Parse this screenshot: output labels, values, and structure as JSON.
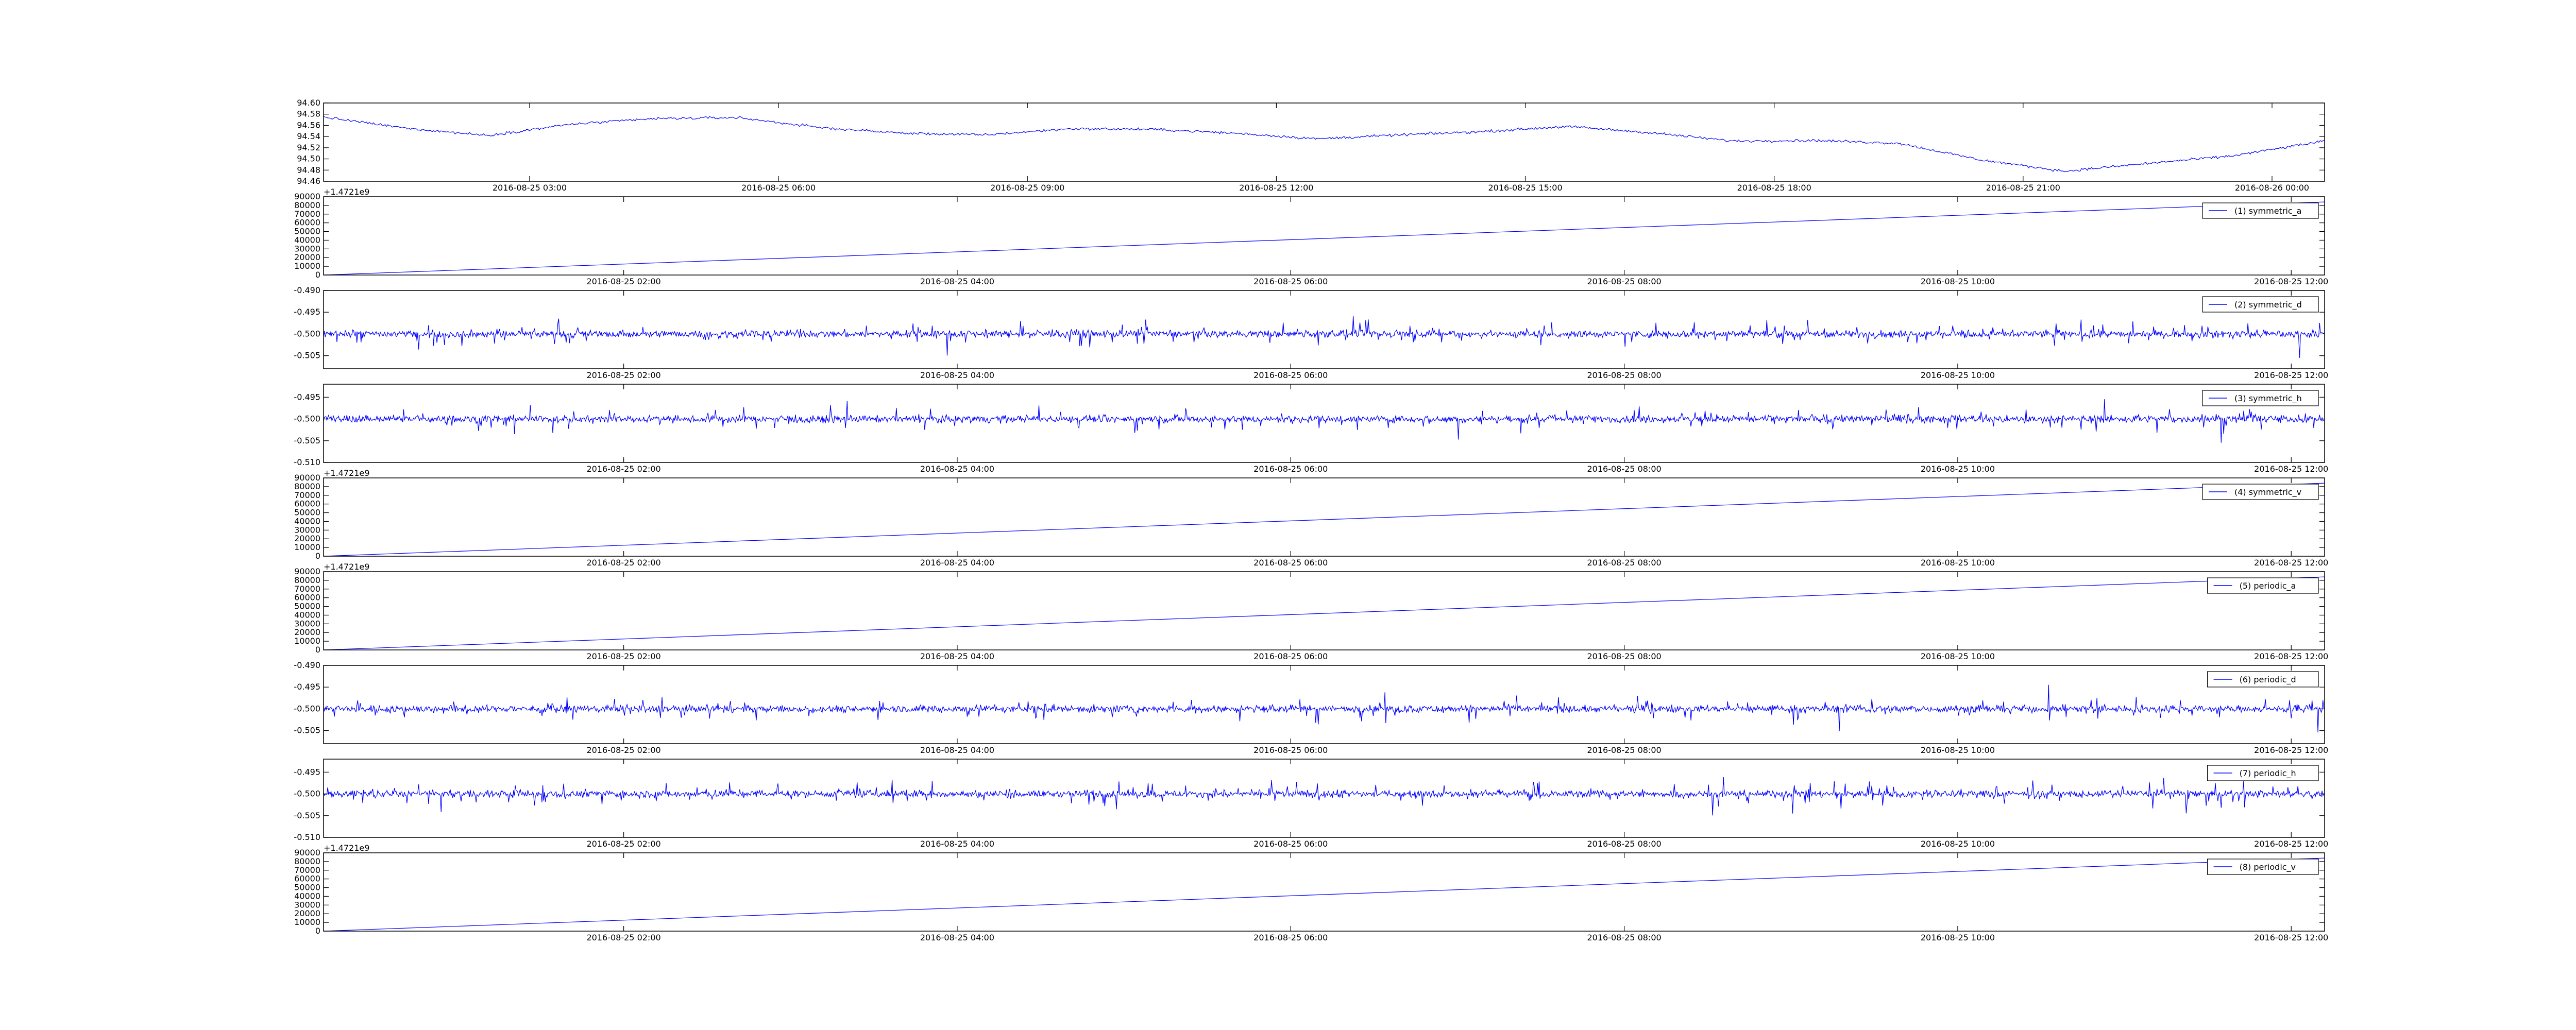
{
  "colors": {
    "line": "#0000ff",
    "axes": "#000000",
    "background": "#ffffff"
  },
  "chart_data": [
    {
      "type": "line",
      "legend": null,
      "offset_text": "",
      "grid": false,
      "ylim": [
        94.46,
        94.6
      ],
      "yticks": [
        94.46,
        94.48,
        94.5,
        94.52,
        94.54,
        94.56,
        94.58,
        94.6
      ],
      "ytick_labels": [
        "94.46",
        "94.48",
        "94.50",
        "94.52",
        "94.54",
        "94.56",
        "94.58",
        "94.60"
      ],
      "xlim": [
        "2016-08-25 00:31",
        "2016-08-26 00:38"
      ],
      "xtick_labels": [
        "2016-08-25 03:00",
        "2016-08-25 06:00",
        "2016-08-25 09:00",
        "2016-08-25 12:00",
        "2016-08-25 15:00",
        "2016-08-25 18:00",
        "2016-08-25 21:00",
        "2016-08-26 00:00"
      ],
      "xtick_times": [
        "2016-08-25 03:00",
        "2016-08-25 06:00",
        "2016-08-25 09:00",
        "2016-08-25 12:00",
        "2016-08-25 15:00",
        "2016-08-25 18:00",
        "2016-08-25 21:00",
        "2016-08-26 00:00"
      ],
      "series": [
        {
          "x": [
            "2016-08-25 00:31",
            "2016-08-25 01:30",
            "2016-08-25 02:30",
            "2016-08-25 03:30",
            "2016-08-25 04:30",
            "2016-08-25 05:30",
            "2016-08-25 06:30",
            "2016-08-25 07:30",
            "2016-08-25 08:30",
            "2016-08-25 09:30",
            "2016-08-25 10:30",
            "2016-08-25 11:30",
            "2016-08-25 12:30",
            "2016-08-25 13:30",
            "2016-08-25 14:30",
            "2016-08-25 15:30",
            "2016-08-25 16:30",
            "2016-08-25 17:30",
            "2016-08-25 18:30",
            "2016-08-25 19:30",
            "2016-08-25 20:30",
            "2016-08-25 21:30",
            "2016-08-25 22:30",
            "2016-08-25 23:30",
            "2016-08-26 00:38"
          ],
          "y": [
            94.575,
            94.555,
            94.542,
            94.562,
            94.572,
            94.574,
            94.556,
            94.546,
            94.543,
            94.554,
            94.553,
            94.546,
            94.536,
            94.543,
            94.549,
            94.558,
            94.547,
            94.532,
            94.533,
            94.528,
            94.498,
            94.478,
            94.492,
            94.505,
            94.532
          ]
        }
      ]
    },
    {
      "type": "line",
      "legend": "(1) symmetric_a",
      "offset_text": "+1.4721e9",
      "grid": false,
      "ylim": [
        0,
        90000
      ],
      "yticks": [
        0,
        10000,
        20000,
        30000,
        40000,
        50000,
        60000,
        70000,
        80000,
        90000
      ],
      "ytick_labels": [
        "0",
        "10000",
        "20000",
        "30000",
        "40000",
        "50000",
        "60000",
        "70000",
        "80000",
        "90000"
      ],
      "xlim": [
        "2016-08-25 00:12",
        "2016-08-25 12:12"
      ],
      "xtick_labels": [
        "2016-08-25 02:00",
        "2016-08-25 04:00",
        "2016-08-25 06:00",
        "2016-08-25 08:00",
        "2016-08-25 10:00",
        "2016-08-25 12:00"
      ],
      "xtick_times": [
        "2016-08-25 02:00",
        "2016-08-25 04:00",
        "2016-08-25 06:00",
        "2016-08-25 08:00",
        "2016-08-25 10:00",
        "2016-08-25 12:00"
      ],
      "series": [
        {
          "name": "(1) symmetric_a",
          "x": [
            "2016-08-25 00:12",
            "2016-08-25 12:12"
          ],
          "y": [
            0,
            84000
          ]
        }
      ]
    },
    {
      "type": "line",
      "legend": "(2) symmetric_d",
      "offset_text": "",
      "grid": false,
      "ylim": [
        -0.508,
        -0.49
      ],
      "yticks": [
        -0.505,
        -0.5,
        -0.495,
        -0.49
      ],
      "ytick_labels": [
        "-0.505",
        "-0.500",
        "-0.495",
        "-0.490"
      ],
      "xlim": [
        "2016-08-25 00:12",
        "2016-08-25 12:12"
      ],
      "xtick_labels": [
        "2016-08-25 02:00",
        "2016-08-25 04:00",
        "2016-08-25 06:00",
        "2016-08-25 08:00",
        "2016-08-25 10:00",
        "2016-08-25 12:00"
      ],
      "xtick_times": [
        "2016-08-25 02:00",
        "2016-08-25 04:00",
        "2016-08-25 06:00",
        "2016-08-25 08:00",
        "2016-08-25 10:00",
        "2016-08-25 12:00"
      ],
      "series": [
        {
          "name": "(2) symmetric_d",
          "x": [
            "2016-08-25 00:12",
            "2016-08-25 12:12"
          ],
          "y": [
            -0.5,
            -0.5
          ]
        }
      ]
    },
    {
      "type": "line",
      "legend": "(3) symmetric_h",
      "offset_text": "",
      "grid": false,
      "ylim": [
        -0.51,
        -0.492
      ],
      "yticks": [
        -0.51,
        -0.505,
        -0.5,
        -0.495
      ],
      "ytick_labels": [
        "-0.510",
        "-0.505",
        "-0.500",
        "-0.495"
      ],
      "xlim": [
        "2016-08-25 00:12",
        "2016-08-25 12:12"
      ],
      "xtick_labels": [
        "2016-08-25 02:00",
        "2016-08-25 04:00",
        "2016-08-25 06:00",
        "2016-08-25 08:00",
        "2016-08-25 10:00",
        "2016-08-25 12:00"
      ],
      "xtick_times": [
        "2016-08-25 02:00",
        "2016-08-25 04:00",
        "2016-08-25 06:00",
        "2016-08-25 08:00",
        "2016-08-25 10:00",
        "2016-08-25 12:00"
      ],
      "series": [
        {
          "name": "(3) symmetric_h",
          "x": [
            "2016-08-25 00:12",
            "2016-08-25 12:12"
          ],
          "y": [
            -0.5,
            -0.5
          ]
        }
      ]
    },
    {
      "type": "line",
      "legend": "(4) symmetric_v",
      "offset_text": "+1.4721e9",
      "grid": false,
      "ylim": [
        0,
        90000
      ],
      "yticks": [
        0,
        10000,
        20000,
        30000,
        40000,
        50000,
        60000,
        70000,
        80000,
        90000
      ],
      "ytick_labels": [
        "0",
        "10000",
        "20000",
        "30000",
        "40000",
        "50000",
        "60000",
        "70000",
        "80000",
        "90000"
      ],
      "xlim": [
        "2016-08-25 00:12",
        "2016-08-25 12:12"
      ],
      "xtick_labels": [
        "2016-08-25 02:00",
        "2016-08-25 04:00",
        "2016-08-25 06:00",
        "2016-08-25 08:00",
        "2016-08-25 10:00",
        "2016-08-25 12:00"
      ],
      "xtick_times": [
        "2016-08-25 02:00",
        "2016-08-25 04:00",
        "2016-08-25 06:00",
        "2016-08-25 08:00",
        "2016-08-25 10:00",
        "2016-08-25 12:00"
      ],
      "series": [
        {
          "name": "(4) symmetric_v",
          "x": [
            "2016-08-25 00:12",
            "2016-08-25 12:12"
          ],
          "y": [
            0,
            84000
          ]
        }
      ]
    },
    {
      "type": "line",
      "legend": "(5) periodic_a",
      "offset_text": "+1.4721e9",
      "grid": false,
      "ylim": [
        0,
        90000
      ],
      "yticks": [
        0,
        10000,
        20000,
        30000,
        40000,
        50000,
        60000,
        70000,
        80000,
        90000
      ],
      "ytick_labels": [
        "0",
        "10000",
        "20000",
        "30000",
        "40000",
        "50000",
        "60000",
        "70000",
        "80000",
        "90000"
      ],
      "xlim": [
        "2016-08-25 00:12",
        "2016-08-25 12:12"
      ],
      "xtick_labels": [
        "2016-08-25 02:00",
        "2016-08-25 04:00",
        "2016-08-25 06:00",
        "2016-08-25 08:00",
        "2016-08-25 10:00",
        "2016-08-25 12:00"
      ],
      "xtick_times": [
        "2016-08-25 02:00",
        "2016-08-25 04:00",
        "2016-08-25 06:00",
        "2016-08-25 08:00",
        "2016-08-25 10:00",
        "2016-08-25 12:00"
      ],
      "series": [
        {
          "name": "(5) periodic_a",
          "x": [
            "2016-08-25 00:12",
            "2016-08-25 12:12"
          ],
          "y": [
            0,
            84000
          ]
        }
      ]
    },
    {
      "type": "line",
      "legend": "(6) periodic_d",
      "offset_text": "",
      "grid": false,
      "ylim": [
        -0.508,
        -0.49
      ],
      "yticks": [
        -0.505,
        -0.5,
        -0.495,
        -0.49
      ],
      "ytick_labels": [
        "-0.505",
        "-0.500",
        "-0.495",
        "-0.490"
      ],
      "xlim": [
        "2016-08-25 00:12",
        "2016-08-25 12:12"
      ],
      "xtick_labels": [
        "2016-08-25 02:00",
        "2016-08-25 04:00",
        "2016-08-25 06:00",
        "2016-08-25 08:00",
        "2016-08-25 10:00",
        "2016-08-25 12:00"
      ],
      "xtick_times": [
        "2016-08-25 02:00",
        "2016-08-25 04:00",
        "2016-08-25 06:00",
        "2016-08-25 08:00",
        "2016-08-25 10:00",
        "2016-08-25 12:00"
      ],
      "series": [
        {
          "name": "(6) periodic_d",
          "x": [
            "2016-08-25 00:12",
            "2016-08-25 12:12"
          ],
          "y": [
            -0.5,
            -0.5
          ]
        }
      ]
    },
    {
      "type": "line",
      "legend": "(7) periodic_h",
      "offset_text": "",
      "grid": false,
      "ylim": [
        -0.51,
        -0.492
      ],
      "yticks": [
        -0.51,
        -0.505,
        -0.5,
        -0.495
      ],
      "ytick_labels": [
        "-0.510",
        "-0.505",
        "-0.500",
        "-0.495"
      ],
      "xlim": [
        "2016-08-25 00:12",
        "2016-08-25 12:12"
      ],
      "xtick_labels": [
        "2016-08-25 02:00",
        "2016-08-25 04:00",
        "2016-08-25 06:00",
        "2016-08-25 08:00",
        "2016-08-25 10:00",
        "2016-08-25 12:00"
      ],
      "xtick_times": [
        "2016-08-25 02:00",
        "2016-08-25 04:00",
        "2016-08-25 06:00",
        "2016-08-25 08:00",
        "2016-08-25 10:00",
        "2016-08-25 12:00"
      ],
      "series": [
        {
          "name": "(7) periodic_h",
          "x": [
            "2016-08-25 00:12",
            "2016-08-25 12:12"
          ],
          "y": [
            -0.5,
            -0.5
          ]
        }
      ]
    },
    {
      "type": "line",
      "legend": "(8) periodic_v",
      "offset_text": "+1.4721e9",
      "grid": false,
      "ylim": [
        0,
        90000
      ],
      "yticks": [
        0,
        10000,
        20000,
        30000,
        40000,
        50000,
        60000,
        70000,
        80000,
        90000
      ],
      "ytick_labels": [
        "0",
        "10000",
        "20000",
        "30000",
        "40000",
        "50000",
        "60000",
        "70000",
        "80000",
        "90000"
      ],
      "xlim": [
        "2016-08-25 00:12",
        "2016-08-25 12:12"
      ],
      "xtick_labels": [
        "2016-08-25 02:00",
        "2016-08-25 04:00",
        "2016-08-25 06:00",
        "2016-08-25 08:00",
        "2016-08-25 10:00",
        "2016-08-25 12:00"
      ],
      "xtick_times": [
        "2016-08-25 02:00",
        "2016-08-25 04:00",
        "2016-08-25 06:00",
        "2016-08-25 08:00",
        "2016-08-25 10:00",
        "2016-08-25 12:00"
      ],
      "series": [
        {
          "name": "(8) periodic_v",
          "x": [
            "2016-08-25 00:12",
            "2016-08-25 12:12"
          ],
          "y": [
            0,
            84000
          ]
        }
      ]
    }
  ]
}
